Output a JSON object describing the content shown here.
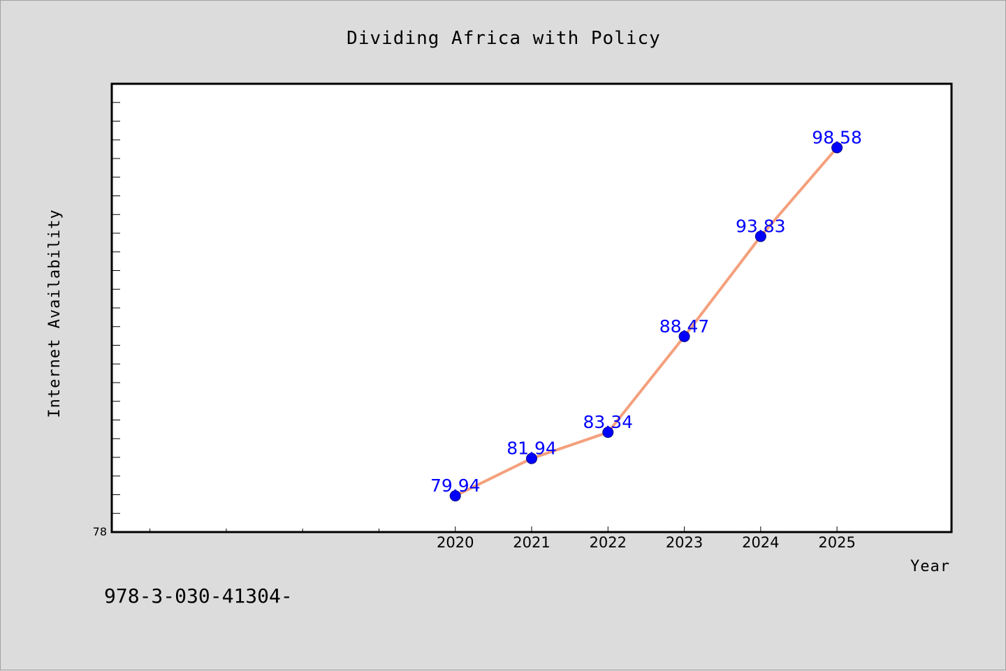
{
  "chart_data": {
    "type": "line",
    "title": "Dividing Africa with Policy",
    "xlabel": "Year",
    "ylabel": "Internet Availability",
    "x": [
      2020,
      2021,
      2022,
      2023,
      2024,
      2025
    ],
    "x_tick_labels": [
      "2020",
      "2021",
      "2022",
      "2023",
      "2024",
      "2025"
    ],
    "values": [
      79.94,
      81.94,
      83.34,
      88.47,
      93.83,
      98.58
    ],
    "data_labels": [
      "79.94",
      "81.94",
      "83.34",
      "88.47",
      "93.83",
      "98.58"
    ],
    "y_min_label": "78",
    "xlim": [
      2015.5,
      2026.5
    ],
    "ylim": [
      78,
      102
    ],
    "grid": false,
    "line_color": "#f4a07c",
    "marker_color": "#0000ff",
    "label_color": "#0000ff"
  },
  "footer": {
    "text": "978-3-030-41304-"
  }
}
